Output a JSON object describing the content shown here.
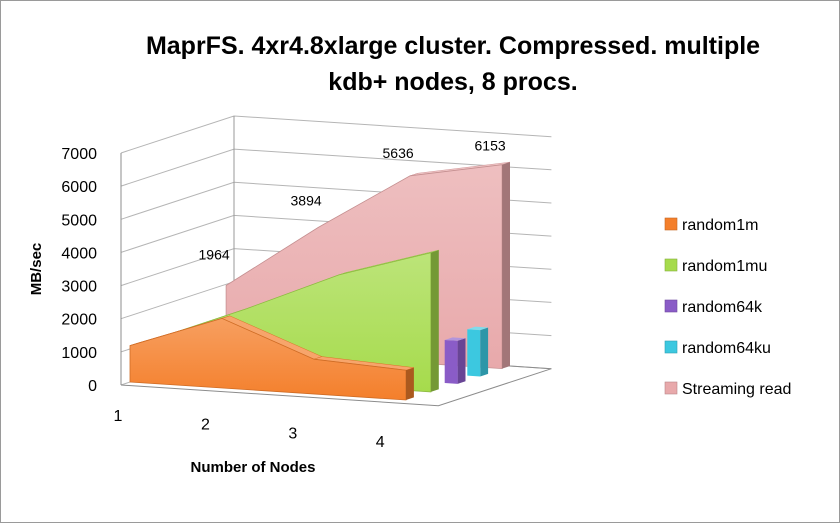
{
  "chart_data": {
    "type": "area",
    "title_lines": [
      "MaprFS. 4xr4.8xlarge cluster. Compressed. multiple",
      "kdb+ nodes, 8 procs."
    ],
    "xlabel": "Number of Nodes",
    "ylabel": "MB/sec",
    "categories": [
      "1",
      "2",
      "3",
      "4"
    ],
    "yticks": [
      "0",
      "1000",
      "2000",
      "3000",
      "4000",
      "5000",
      "6000",
      "7000"
    ],
    "ylim": [
      0,
      7000
    ],
    "grid": true,
    "legend_position": "right",
    "series": [
      {
        "name": "random1m",
        "color": "#f47f2b",
        "values": [
          1100,
          2100,
          1050,
          900
        ]
      },
      {
        "name": "random1mu",
        "color": "#a6db4c",
        "values": [
          1050,
          2150,
          3350,
          4200
        ]
      },
      {
        "name": "random64k",
        "color": "#8a5cc7",
        "values": [
          0,
          0,
          0,
          1300
        ]
      },
      {
        "name": "random64ku",
        "color": "#3cc8e0",
        "values": [
          0,
          0,
          0,
          1400
        ]
      },
      {
        "name": "Streaming read",
        "color": "#e8a9ab",
        "values": [
          1964,
          3894,
          5636,
          6153
        ]
      }
    ],
    "data_labels": {
      "series": "Streaming read",
      "labels": [
        "1964",
        "3894",
        "5636",
        "6153"
      ]
    }
  }
}
